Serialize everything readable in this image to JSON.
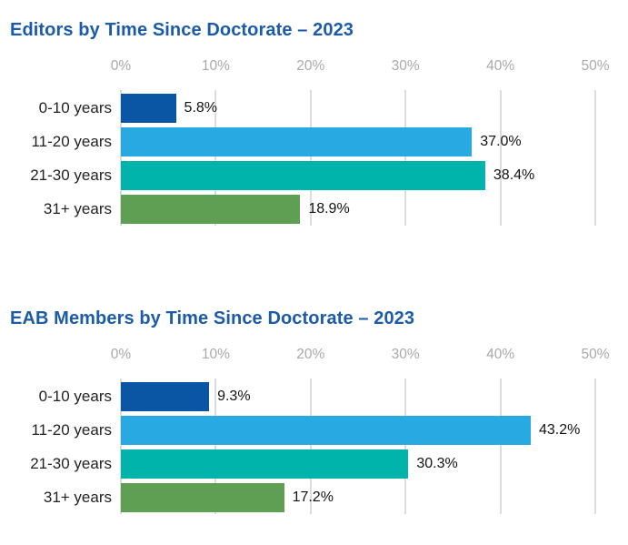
{
  "page": {
    "background": "#ffffff"
  },
  "styles": {
    "title_color": "#1C5BA7",
    "axis_label_color": "#A9A9A9",
    "gridline_color": "#DCDCDC",
    "category_label_color": "#222222",
    "value_label_color": "#121212"
  },
  "chart_data": [
    {
      "type": "bar",
      "orientation": "horizontal",
      "title": "Editors by Time Since Doctorate – 2023",
      "categories": [
        "0-10 years",
        "11-20 years",
        "21-30 years",
        "31+ years"
      ],
      "values": [
        5.8,
        37.0,
        38.4,
        18.9
      ],
      "value_labels": [
        "5.8%",
        "37.0%",
        "38.4%",
        "18.9%"
      ],
      "xlim": [
        0,
        50
      ],
      "x_ticks": [
        "0%",
        "10%",
        "20%",
        "30%",
        "40%",
        "50%"
      ],
      "grid": true,
      "legend": "none",
      "bar_colors": [
        "#0B55A5",
        "#29A9E1",
        "#00B3AB",
        "#5F9F53"
      ]
    },
    {
      "type": "bar",
      "orientation": "horizontal",
      "title": "EAB Members by Time Since Doctorate – 2023",
      "categories": [
        "0-10 years",
        "11-20 years",
        "21-30 years",
        "31+ years"
      ],
      "values": [
        9.3,
        43.2,
        30.3,
        17.2
      ],
      "value_labels": [
        "9.3%",
        "43.2%",
        "30.3%",
        "17.2%"
      ],
      "xlim": [
        0,
        50
      ],
      "x_ticks": [
        "0%",
        "10%",
        "20%",
        "30%",
        "40%",
        "50%"
      ],
      "grid": true,
      "legend": "none",
      "bar_colors": [
        "#0B55A5",
        "#29A9E1",
        "#00B3AB",
        "#5F9F53"
      ]
    }
  ]
}
